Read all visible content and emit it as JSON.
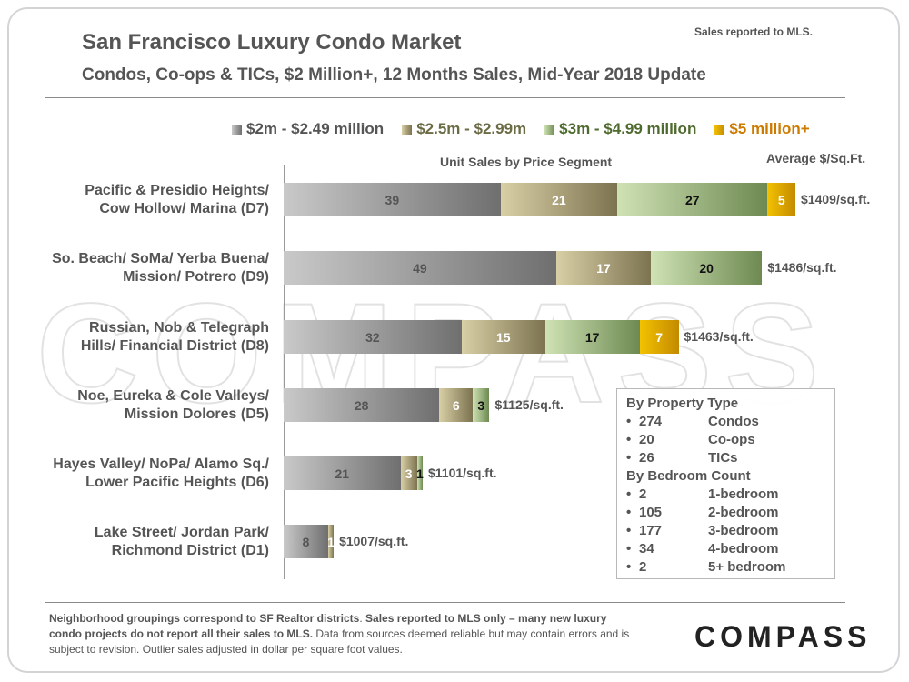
{
  "header": {
    "title": "San Francisco Luxury Condo Market",
    "subtitle": "Condos, Co-ops & TICs, $2 Million+, 12 Months Sales, Mid-Year 2018 Update",
    "note": "Sales reported to MLS."
  },
  "colors": {
    "seg1": "#8f8f8f",
    "seg2": "#b5aa86",
    "seg3": "#a9c18a",
    "seg4": "#d9a51f",
    "seg4_text": "#cc7a00",
    "legend_dark": "#6b6b45",
    "legend_green": "#4f6a2e"
  },
  "watermark": "COMPASS",
  "chart_data": {
    "type": "bar",
    "orientation": "horizontal",
    "stacked": true,
    "title": "Unit Sales by Price Segment",
    "secondary_label": "Average $/Sq.Ft.",
    "legend_position": "top",
    "categories": [
      "Pacific & Presidio Heights/ Cow Hollow/ Marina (D7)",
      "So. Beach/ SoMa/ Yerba Buena/ Mission/ Potrero (D9)",
      "Russian, Nob & Telegraph Hills/ Financial District (D8)",
      "Noe, Eureka & Cole Valleys/ Mission Dolores (D5)",
      "Hayes Valley/ NoPa/ Alamo Sq./ Lower Pacific Heights (D6)",
      "Lake Street/ Jordan Park/ Richmond District (D1)"
    ],
    "category_lines": [
      [
        "Pacific & Presidio Heights/",
        "Cow Hollow/ Marina (D7)"
      ],
      [
        "So. Beach/ SoMa/ Yerba Buena/",
        "Mission/ Potrero (D9)"
      ],
      [
        "Russian, Nob & Telegraph",
        "Hills/ Financial District (D8)"
      ],
      [
        "Noe, Eureka & Cole Valleys/",
        "Mission Dolores (D5)"
      ],
      [
        "Hayes Valley/ NoPa/ Alamo Sq./",
        "Lower Pacific Heights (D6)"
      ],
      [
        "Lake Street/ Jordan Park/",
        "Richmond District (D1)"
      ]
    ],
    "series": [
      {
        "name": "$2m - $2.49 million",
        "values": [
          39,
          49,
          32,
          28,
          21,
          8
        ]
      },
      {
        "name": "$2.5m - $2.99m",
        "values": [
          21,
          17,
          15,
          6,
          3,
          1
        ]
      },
      {
        "name": "$3m - $4.99 million",
        "values": [
          27,
          20,
          17,
          3,
          1,
          0
        ]
      },
      {
        "name": "$5 million+",
        "values": [
          5,
          0,
          7,
          0,
          0,
          0
        ]
      }
    ],
    "avg_price_per_sqft": [
      "$1409/sq.ft.",
      "$1486/sq.ft.",
      "$1463/sq.ft.",
      "$1125/sq.ft.",
      "$1101/sq.ft.",
      "$1007/sq.ft."
    ],
    "xlim": [
      0,
      100
    ],
    "grid": false
  },
  "info_box": {
    "property_heading": "By Property Type",
    "property_rows": [
      {
        "bullet": "•",
        "count": "274",
        "label": "Condos"
      },
      {
        "bullet": "•",
        "count": "20",
        "label": "Co-ops"
      },
      {
        "bullet": "•",
        "count": "26",
        "label": "TICs"
      }
    ],
    "bedroom_heading": "By Bedroom Count",
    "bedroom_rows": [
      {
        "bullet": "•",
        "count": "2",
        "label": "1-bedroom"
      },
      {
        "bullet": "•",
        "count": "105",
        "label": "2-bedroom"
      },
      {
        "bullet": "•",
        "count": "177",
        "label": "3-bedroom"
      },
      {
        "bullet": "•",
        "count": "34",
        "label": "4-bedroom"
      },
      {
        "bullet": "•",
        "count": "2",
        "label": "5+ bedroom"
      }
    ]
  },
  "footer": {
    "part1": "Neighborhood groupings correspond to SF Realtor districts",
    "part2": ". ",
    "part3": "Sales reported to MLS only – many new luxury condo projects do not report all their sales to MLS.",
    "part4": " Data from sources deemed reliable but may contain errors and is subject to revision. Outlier sales adjusted in dollar per square foot values."
  },
  "logo": "COMPASS"
}
